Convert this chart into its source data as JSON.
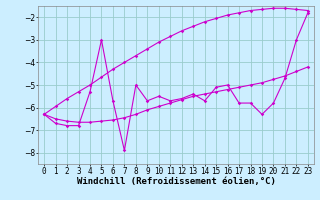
{
  "xlabel": "Windchill (Refroidissement éolien,°C)",
  "background_color": "#cceeff",
  "plot_bg_color": "#cceeff",
  "line_color": "#cc00cc",
  "grid_color": "#99cccc",
  "x_values": [
    0,
    1,
    2,
    3,
    4,
    5,
    6,
    7,
    8,
    9,
    10,
    11,
    12,
    13,
    14,
    15,
    16,
    17,
    18,
    19,
    20,
    21,
    22,
    23
  ],
  "y_zigzag": [
    -6.3,
    -6.7,
    -6.8,
    -6.8,
    -5.3,
    -3.0,
    -5.7,
    -7.9,
    -5.0,
    -5.7,
    -5.5,
    -5.7,
    -5.6,
    -5.4,
    -5.7,
    -5.1,
    -5.0,
    -5.8,
    -5.8,
    -6.3,
    -5.8,
    -4.7,
    -3.0,
    -1.8
  ],
  "y_upper": [
    -6.3,
    -5.95,
    -5.6,
    -5.3,
    -5.0,
    -4.65,
    -4.3,
    -4.0,
    -3.7,
    -3.4,
    -3.1,
    -2.85,
    -2.6,
    -2.4,
    -2.2,
    -2.05,
    -1.9,
    -1.8,
    -1.7,
    -1.65,
    -1.6,
    -1.6,
    -1.65,
    -1.7
  ],
  "y_lower": [
    -6.3,
    -6.5,
    -6.6,
    -6.65,
    -6.65,
    -6.6,
    -6.55,
    -6.45,
    -6.3,
    -6.1,
    -5.95,
    -5.8,
    -5.65,
    -5.5,
    -5.4,
    -5.3,
    -5.2,
    -5.1,
    -5.0,
    -4.9,
    -4.75,
    -4.6,
    -4.4,
    -4.2
  ],
  "ylim": [
    -8.5,
    -1.5
  ],
  "xlim": [
    -0.5,
    23.5
  ],
  "yticks": [
    -8,
    -7,
    -6,
    -5,
    -4,
    -3,
    -2
  ],
  "xtick_labels": [
    "0",
    "1",
    "2",
    "3",
    "4",
    "5",
    "6",
    "7",
    "8",
    "9",
    "10",
    "11",
    "12",
    "13",
    "14",
    "15",
    "16",
    "17",
    "18",
    "19",
    "20",
    "21",
    "22",
    "23"
  ],
  "axis_fontsize": 6,
  "tick_fontsize": 5.5,
  "xlabel_fontsize": 6.5
}
